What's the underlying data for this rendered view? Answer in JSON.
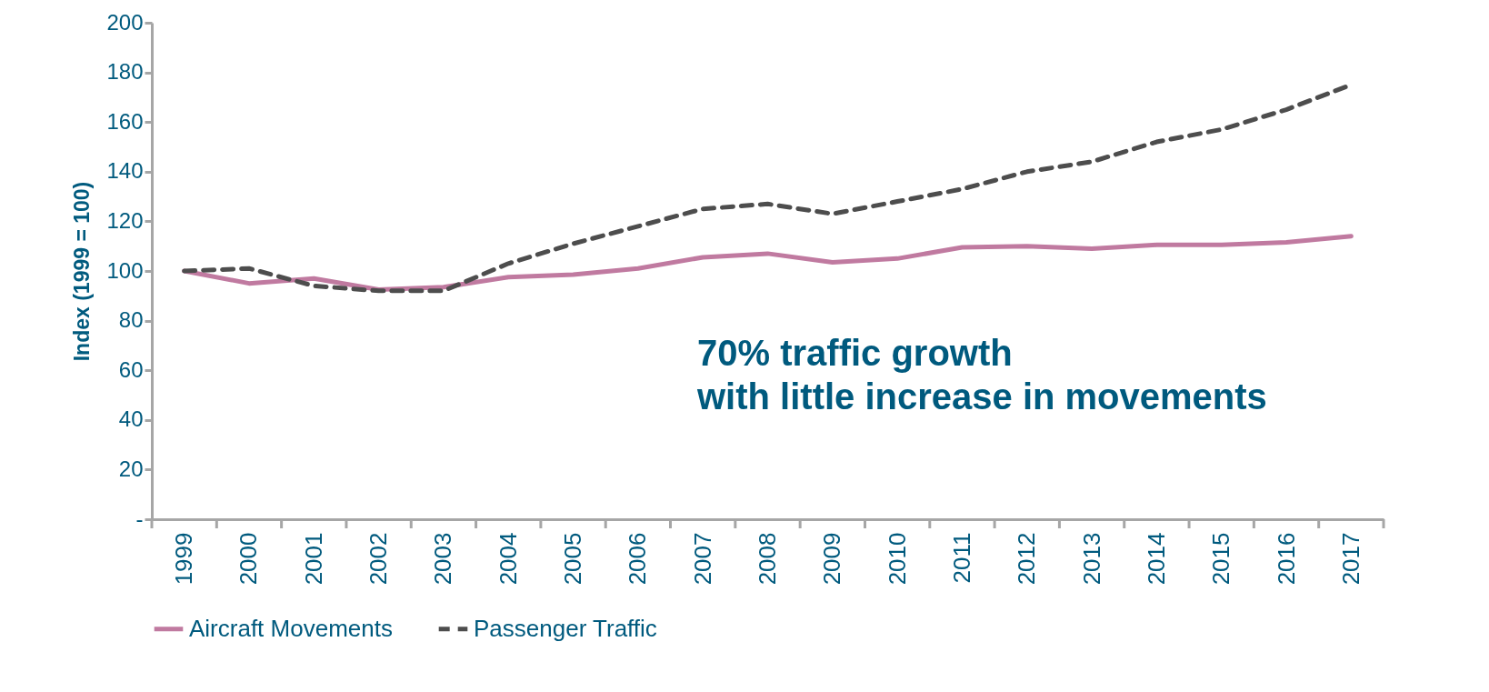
{
  "chart_data": {
    "type": "line",
    "ylabel": "Index (1999 = 100)",
    "categories": [
      "1999",
      "2000",
      "2001",
      "2002",
      "2003",
      "2004",
      "2005",
      "2006",
      "2007",
      "2008",
      "2009",
      "2010",
      "2011",
      "2012",
      "2013",
      "2014",
      "2015",
      "2016",
      "2017"
    ],
    "series": [
      {
        "name": "Aircraft Movements",
        "color": "#c07aa0",
        "line_style": "solid",
        "values": [
          100,
          95,
          97,
          92.5,
          93.5,
          97.5,
          98.5,
          101,
          105.5,
          107,
          103.5,
          105,
          109.5,
          110,
          109,
          110.5,
          110.5,
          111.5,
          114
        ]
      },
      {
        "name": "Passenger Traffic",
        "color": "#4d4d4d",
        "line_style": "dashed",
        "values": [
          100,
          101,
          94,
          92,
          92,
          103,
          111,
          118,
          125,
          127,
          123,
          128,
          133,
          140,
          144,
          152,
          157,
          165,
          175
        ]
      }
    ],
    "ylim": [
      0,
      200
    ],
    "yticks": [
      {
        "value": 0,
        "label": "-"
      },
      20,
      40,
      60,
      80,
      100,
      120,
      140,
      160,
      180,
      200
    ],
    "grid": false,
    "legend": "bottom",
    "marker": "none",
    "annotations": [
      "70% traffic growth\nwith little increase in movements"
    ]
  }
}
